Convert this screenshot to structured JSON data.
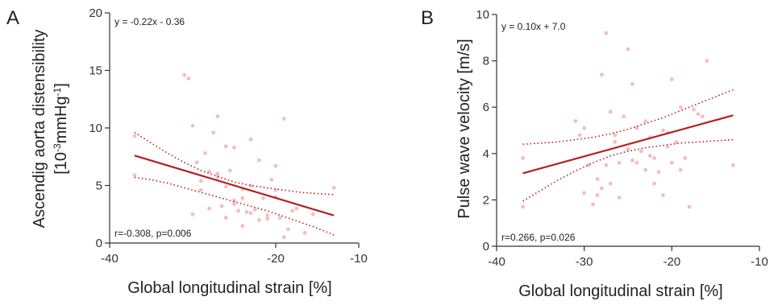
{
  "chart_data": [
    {
      "type": "scatter",
      "panel_label": "A",
      "xlabel": "Global longitudinal strain [%]",
      "ylabel_line1": "Ascendig aorta distensibility",
      "ylabel_line2": "[10",
      "ylabel_sup1": "-3",
      "ylabel_mid": "mmHg",
      "ylabel_sup2": "-1",
      "ylabel_end": "]",
      "equation": "y = -0.22x - 0.36",
      "correlation": "r=-0.308, p=0.006",
      "xlim": [
        -40,
        -10
      ],
      "ylim": [
        0,
        20
      ],
      "xticks": [
        "-40",
        "-20",
        "-10"
      ],
      "xtick_values": [
        -40,
        -20,
        -10
      ],
      "yticks": [
        "0",
        "5",
        "10",
        "15",
        "20"
      ],
      "ytick_values": [
        0,
        5,
        10,
        15,
        20
      ],
      "regression": {
        "x": [
          -37,
          -13
        ],
        "y": [
          7.6,
          2.4
        ]
      },
      "ci_upper": {
        "x": [
          -37,
          -35,
          -33,
          -31,
          -29,
          -27,
          -25,
          -23,
          -21,
          -19,
          -17,
          -15,
          -13
        ],
        "y": [
          9.6,
          8.7,
          7.8,
          7.0,
          6.3,
          5.8,
          5.3,
          5.0,
          4.8,
          4.6,
          4.4,
          4.3,
          4.2
        ]
      },
      "ci_lower": {
        "x": [
          -37,
          -35,
          -33,
          -31,
          -29,
          -27,
          -25,
          -23,
          -21,
          -19,
          -17,
          -15,
          -13
        ],
        "y": [
          5.7,
          5.5,
          5.2,
          4.8,
          4.4,
          4.0,
          3.6,
          3.2,
          2.8,
          2.3,
          1.8,
          1.3,
          0.7
        ]
      },
      "points": {
        "x": [
          -37,
          -37,
          -31,
          -30.5,
          -30,
          -29.5,
          -29,
          -28.5,
          -28,
          -27.5,
          -27,
          -27,
          -26.5,
          -26,
          -26,
          -25.5,
          -25,
          -25,
          -24.5,
          -24,
          -24,
          -23.5,
          -23,
          -23,
          -22.5,
          -22,
          -21.5,
          -21,
          -20.5,
          -20,
          -20,
          -19.5,
          -19,
          -18.5,
          -18,
          -17.5,
          -16.5,
          -15.5,
          -13,
          -30,
          -28,
          -26,
          -24,
          -22,
          -20,
          -19,
          -27,
          -29,
          -25,
          -23,
          -21
        ],
        "y": [
          9.3,
          5.9,
          14.6,
          14.3,
          10.2,
          7.0,
          4.6,
          7.8,
          3.0,
          9.6,
          11.0,
          5.7,
          3.2,
          4.9,
          2.2,
          6.3,
          3.4,
          8.3,
          2.8,
          3.9,
          1.5,
          2.7,
          5.0,
          9.0,
          2.9,
          7.2,
          3.9,
          2.4,
          5.5,
          4.0,
          6.7,
          2.2,
          10.8,
          1.2,
          2.8,
          3.0,
          0.9,
          2.5,
          4.8,
          2.5,
          6.2,
          8.4,
          4.7,
          2.0,
          4.6,
          0.5,
          6.0,
          5.4,
          3.7,
          2.6,
          2.1
        ]
      }
    },
    {
      "type": "scatter",
      "panel_label": "B",
      "xlabel": "Global longitudinal strain [%]",
      "ylabel": "Pulse wave velocity [m/s]",
      "equation": "y = 0.10x + 7.0",
      "correlation": "r=0.266, p=0.026",
      "xlim": [
        -40,
        -10
      ],
      "ylim": [
        0,
        10
      ],
      "xticks": [
        "-40",
        "-30",
        "-20",
        "-10"
      ],
      "xtick_values": [
        -40,
        -30,
        -20,
        -10
      ],
      "yticks": [
        "0",
        "2",
        "4",
        "6",
        "8",
        "10"
      ],
      "ytick_values": [
        0,
        2,
        4,
        6,
        8,
        10
      ],
      "regression": {
        "x": [
          -37,
          -13
        ],
        "y": [
          3.15,
          5.65
        ]
      },
      "ci_upper": {
        "x": [
          -37,
          -35,
          -33,
          -31,
          -29,
          -27,
          -25,
          -23,
          -21,
          -19,
          -17,
          -15,
          -13
        ],
        "y": [
          4.4,
          4.45,
          4.5,
          4.6,
          4.7,
          4.85,
          5.05,
          5.3,
          5.55,
          5.85,
          6.15,
          6.45,
          6.75
        ]
      },
      "ci_lower": {
        "x": [
          -37,
          -35,
          -33,
          -31,
          -29,
          -27,
          -25,
          -23,
          -21,
          -19,
          -17,
          -15,
          -13
        ],
        "y": [
          1.95,
          2.4,
          2.85,
          3.25,
          3.6,
          3.9,
          4.1,
          4.25,
          4.35,
          4.45,
          4.5,
          4.55,
          4.6
        ]
      },
      "points": {
        "x": [
          -37,
          -37,
          -31,
          -30.5,
          -30,
          -29.5,
          -29,
          -28.5,
          -28,
          -28,
          -27.5,
          -27.5,
          -27,
          -27,
          -26.5,
          -26,
          -26,
          -25.5,
          -25,
          -25,
          -24.5,
          -24,
          -24,
          -23.5,
          -23,
          -23,
          -22.5,
          -22,
          -22,
          -21.5,
          -21,
          -21,
          -20.5,
          -20,
          -20,
          -19.5,
          -19,
          -19,
          -18.5,
          -18,
          -17.5,
          -17,
          -16.5,
          -16,
          -13,
          -30,
          -28.5,
          -26.5,
          -24.5,
          -22.5,
          -20.5
        ],
        "y": [
          3.8,
          1.7,
          5.4,
          4.8,
          2.3,
          3.5,
          1.8,
          2.9,
          7.4,
          2.5,
          3.5,
          9.2,
          5.8,
          2.7,
          4.5,
          3.6,
          2.1,
          5.6,
          4.2,
          8.5,
          3.7,
          5.1,
          3.6,
          4.1,
          3.3,
          5.4,
          4.7,
          3.8,
          2.7,
          3.2,
          5.0,
          2.2,
          4.9,
          7.2,
          3.6,
          4.5,
          6.0,
          3.3,
          3.8,
          1.7,
          5.9,
          5.7,
          5.6,
          8.0,
          3.5,
          5.1,
          2.2,
          4.8,
          7.0,
          3.9,
          4.3
        ]
      }
    }
  ]
}
